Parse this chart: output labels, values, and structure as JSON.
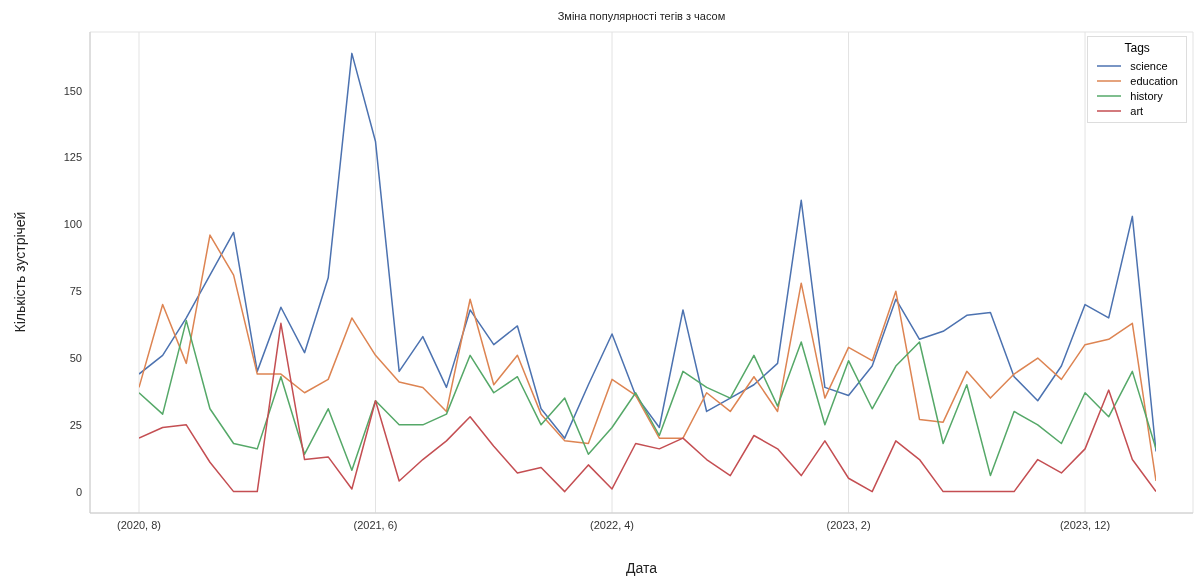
{
  "chart_data": {
    "type": "line",
    "title": "Зміна популярності тегів з часом",
    "xlabel": "Дата",
    "ylabel": "Кількість зустрічей",
    "legend_title": "Tags",
    "categories": [
      "(2020, 8)",
      null,
      null,
      null,
      null,
      null,
      null,
      null,
      null,
      null,
      "(2021, 6)",
      null,
      null,
      null,
      null,
      null,
      null,
      null,
      null,
      null,
      "(2022, 4)",
      null,
      null,
      null,
      null,
      null,
      null,
      null,
      null,
      null,
      "(2023, 2)",
      null,
      null,
      null,
      null,
      null,
      null,
      null,
      null,
      null,
      "(2023, 12)",
      null,
      null,
      null
    ],
    "series": [
      {
        "name": "science",
        "color": "#4c72b0",
        "values": [
          44,
          51,
          65,
          81,
          97,
          45,
          69,
          52,
          80,
          164,
          131,
          45,
          58,
          39,
          68,
          55,
          62,
          31,
          20,
          40,
          59,
          36,
          24,
          68,
          30,
          35,
          40,
          48,
          109,
          39,
          36,
          47,
          72,
          57,
          60,
          66,
          67,
          43,
          34,
          47,
          70,
          65,
          103,
          15
        ]
      },
      {
        "name": "education",
        "color": "#dd8452",
        "values": [
          39,
          70,
          48,
          96,
          81,
          44,
          44,
          37,
          42,
          65,
          51,
          41,
          39,
          30,
          72,
          40,
          51,
          29,
          19,
          18,
          42,
          36,
          20,
          20,
          37,
          30,
          43,
          30,
          78,
          35,
          54,
          49,
          75,
          27,
          26,
          45,
          35,
          44,
          50,
          42,
          55,
          57,
          63,
          4
        ]
      },
      {
        "name": "history",
        "color": "#55a868",
        "values": [
          37,
          29,
          64,
          31,
          18,
          16,
          43,
          14,
          31,
          8,
          34,
          25,
          25,
          29,
          51,
          37,
          43,
          25,
          35,
          14,
          24,
          37,
          21,
          45,
          39,
          35,
          51,
          32,
          56,
          25,
          49,
          31,
          47,
          56,
          18,
          40,
          6,
          30,
          25,
          18,
          37,
          28,
          45,
          16
        ]
      },
      {
        "name": "art",
        "color": "#c44e52",
        "values": [
          20,
          24,
          25,
          11,
          0,
          0,
          63,
          12,
          13,
          1,
          34,
          4,
          12,
          19,
          28,
          17,
          7,
          9,
          0,
          10,
          1,
          18,
          16,
          20,
          12,
          6,
          21,
          16,
          6,
          19,
          5,
          0,
          19,
          12,
          0,
          0,
          0,
          0,
          12,
          7,
          16,
          38,
          12,
          0
        ]
      }
    ],
    "ylim": [
      -8,
      172
    ],
    "yticks": [
      0,
      25,
      50,
      75,
      100,
      125,
      150
    ],
    "grid": true,
    "legend": "top right",
    "marker": "none",
    "line_style": "solid"
  }
}
